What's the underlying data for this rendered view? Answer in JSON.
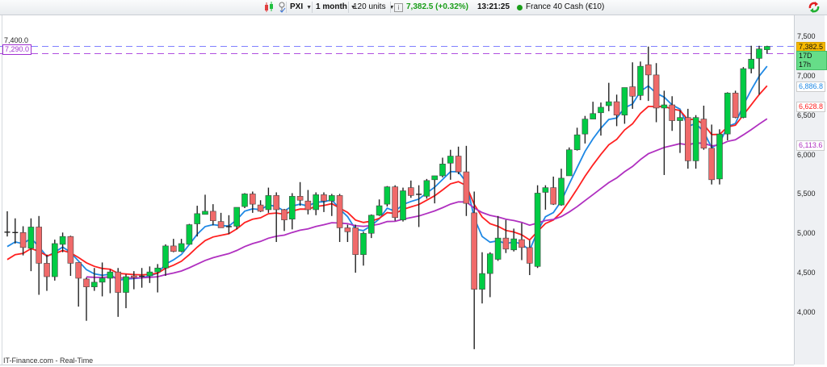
{
  "toolbar": {
    "chart_type_icon": "candlestick-icon",
    "tool_icon": "drawing-tool-icon",
    "symbol": "PXI",
    "interval": "1 month",
    "units": "120 units",
    "info_icon": "info-icon",
    "last_price": "7,382.5 (+0.32%)",
    "time": "13:21:25",
    "status_dot_color": "#1a9e1a",
    "instrument": "France 40 Cash (€10)",
    "refresh_icon": "refresh-arrows-icon"
  },
  "left_labels": {
    "top": "7,400.0",
    "alert": "7,290.0"
  },
  "axis_tags": {
    "price": "7,382.5",
    "countdown": "17D 17h",
    "ma_blue": "6,886.8",
    "ma_red": "6,628.8",
    "ma_purple": "6,113.6"
  },
  "footer": "IT-Finance.com - Real-Time",
  "chart_data": {
    "type": "candlestick",
    "y_ticks": [
      "7,500",
      "7,000",
      "6,500",
      "6,000",
      "5,500",
      "5,000",
      "4,500",
      "4,000"
    ],
    "ylim": [
      3500,
      7500
    ],
    "grid": false,
    "colors": {
      "up": "#00cc44",
      "down": "#f06a6a",
      "ma_blue": "#1e88e5",
      "ma_red": "#ff2020",
      "ma_purple": "#b030c0",
      "price_line": "#8080ff",
      "alert_line": "#b050e0"
    },
    "reference_lines": [
      7382.5,
      7290.0
    ],
    "ohlc": [
      [
        5020,
        5290,
        4970,
        5025
      ],
      [
        5020,
        5200,
        4880,
        5020
      ],
      [
        5020,
        5100,
        4730,
        4830
      ],
      [
        4820,
        5200,
        4530,
        5090
      ],
      [
        5090,
        5230,
        4230,
        4630
      ],
      [
        4630,
        4740,
        4280,
        4460
      ],
      [
        4460,
        4930,
        4410,
        4880
      ],
      [
        4870,
        5020,
        4770,
        4970
      ],
      [
        4970,
        4980,
        4470,
        4630
      ],
      [
        4640,
        4640,
        4080,
        4440
      ],
      [
        4430,
        4450,
        3900,
        4330
      ],
      [
        4330,
        4570,
        4280,
        4390
      ],
      [
        4390,
        4640,
        4210,
        4440
      ],
      [
        4440,
        4550,
        4250,
        4520
      ],
      [
        4520,
        4570,
        3950,
        4260
      ],
      [
        4260,
        4490,
        4060,
        4460
      ],
      [
        4470,
        4530,
        4300,
        4450
      ],
      [
        4460,
        4570,
        4320,
        4465
      ],
      [
        4470,
        4590,
        4380,
        4520
      ],
      [
        4520,
        4620,
        4260,
        4570
      ],
      [
        4570,
        4870,
        4470,
        4850
      ],
      [
        4850,
        4940,
        4770,
        4780
      ],
      [
        4780,
        4940,
        4770,
        4880
      ],
      [
        4870,
        5130,
        4870,
        5120
      ],
      [
        5130,
        5360,
        4970,
        5260
      ],
      [
        5250,
        5500,
        5250,
        5290
      ],
      [
        5290,
        5380,
        5110,
        5170
      ],
      [
        5160,
        5270,
        5080,
        5080
      ],
      [
        5090,
        5240,
        5000,
        5095
      ],
      [
        5100,
        5340,
        5060,
        5340
      ],
      [
        5350,
        5520,
        5330,
        5510
      ],
      [
        5510,
        5540,
        5270,
        5380
      ],
      [
        5370,
        5430,
        5280,
        5290
      ],
      [
        5310,
        5590,
        5270,
        5490
      ],
      [
        5490,
        5530,
        4900,
        5310
      ],
      [
        5310,
        5320,
        5040,
        5180
      ],
      [
        5190,
        5520,
        5060,
        5480
      ],
      [
        5480,
        5660,
        5360,
        5430
      ],
      [
        5420,
        5560,
        5250,
        5310
      ],
      [
        5310,
        5530,
        5240,
        5500
      ],
      [
        5500,
        5530,
        5280,
        5420
      ],
      [
        5420,
        5510,
        5230,
        5490
      ],
      [
        5490,
        5510,
        4900,
        5080
      ],
      [
        5080,
        5120,
        4900,
        5030
      ],
      [
        5080,
        5120,
        4510,
        4740
      ],
      [
        4740,
        5030,
        4600,
        5010
      ],
      [
        5010,
        5250,
        4950,
        5240
      ],
      [
        5240,
        5440,
        5230,
        5360
      ],
      [
        5380,
        5610,
        5350,
        5600
      ],
      [
        5600,
        5620,
        5170,
        5210
      ],
      [
        5180,
        5590,
        5160,
        5550
      ],
      [
        5590,
        5680,
        5460,
        5490
      ],
      [
        5500,
        5620,
        5090,
        5505
      ],
      [
        5480,
        5700,
        5450,
        5680
      ],
      [
        5690,
        5740,
        5390,
        5740
      ],
      [
        5740,
        5970,
        5720,
        5890
      ],
      [
        5900,
        6070,
        5690,
        5990
      ],
      [
        5990,
        6110,
        5760,
        5790
      ],
      [
        5790,
        6120,
        5230,
        5390
      ],
      [
        5270,
        5540,
        3540,
        4300
      ],
      [
        4300,
        4770,
        4120,
        4500
      ],
      [
        4500,
        4770,
        4200,
        4750
      ],
      [
        4680,
        5230,
        4660,
        4950
      ],
      [
        4950,
        5180,
        4760,
        4810
      ],
      [
        4800,
        5070,
        4780,
        4940
      ],
      [
        4930,
        5140,
        4670,
        4830
      ],
      [
        4830,
        4920,
        4480,
        4630
      ],
      [
        4590,
        5620,
        4570,
        5520
      ],
      [
        5530,
        5620,
        5310,
        5590
      ],
      [
        5590,
        5730,
        5370,
        5380
      ],
      [
        5370,
        5830,
        5360,
        5710
      ],
      [
        5740,
        6100,
        5740,
        6070
      ],
      [
        6070,
        6350,
        6060,
        6260
      ],
      [
        6270,
        6500,
        6150,
        6460
      ],
      [
        6460,
        6680,
        6460,
        6530
      ],
      [
        6540,
        6670,
        6250,
        6610
      ],
      [
        6630,
        6920,
        6560,
        6680
      ],
      [
        6680,
        6770,
        6370,
        6510
      ],
      [
        6510,
        6860,
        6400,
        6860
      ],
      [
        6870,
        7180,
        6590,
        6750
      ],
      [
        6760,
        7190,
        6700,
        7130
      ],
      [
        7150,
        7380,
        6690,
        7020
      ],
      [
        7020,
        7170,
        6420,
        6600
      ],
      [
        6600,
        6820,
        5750,
        6640
      ],
      [
        6640,
        6750,
        6310,
        6440
      ],
      [
        6440,
        6570,
        6030,
        6480
      ],
      [
        6480,
        6590,
        5830,
        5930
      ],
      [
        5930,
        6510,
        5830,
        6480
      ],
      [
        6460,
        6630,
        6070,
        6090
      ],
      [
        6090,
        6390,
        5630,
        5690
      ],
      [
        5700,
        6330,
        5630,
        6270
      ],
      [
        6270,
        6800,
        6190,
        6790
      ],
      [
        6790,
        6820,
        6470,
        6480
      ],
      [
        6480,
        7120,
        6470,
        7100
      ],
      [
        7100,
        7390,
        7040,
        7220
      ],
      [
        7230,
        7390,
        6770,
        7350
      ],
      [
        7340,
        7390,
        7290,
        7382.5
      ]
    ],
    "moving_average_last_values": [
      6886.8,
      6628.8,
      6113.6
    ]
  }
}
